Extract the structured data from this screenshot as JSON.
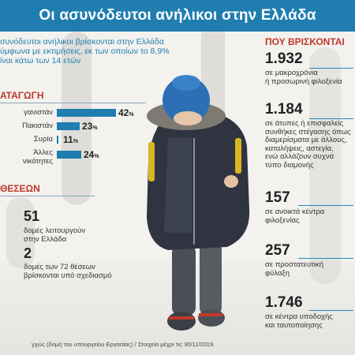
{
  "title": "Οι ασυνόδευτοι ανήλικοι στην Ελλάδα",
  "intro": [
    "συνόδευτοι ανήλικοι βρίσκονται στην Ελλάδα",
    "ύμφωνα με εκτιμήσεις, εκ των οποίων το 8,9%",
    "ίναι κάτω των 14 ετών"
  ],
  "origin": {
    "heading": "ΑΤΑΓΩΓΗ",
    "rows": [
      {
        "label": "γανιστάν",
        "value": 42,
        "pct": "%"
      },
      {
        "label": "Πακιστάν",
        "value": 23,
        "pct": "%"
      },
      {
        "label": "Συρία",
        "value": 11,
        "pct": "%"
      },
      {
        "label_l1": "Άλλες",
        "label_l2": "νικότητες",
        "value": 24,
        "pct": "%"
      }
    ]
  },
  "places": {
    "heading": "ΘΕΣΕΩΝ",
    "a_num": "51",
    "a_txt_1": "δομές λειτουργούν",
    "a_txt_2": "στην Ελλάδα",
    "b_num": "2",
    "b_txt_1": "δομές των 72 θέσεων",
    "b_txt_2": "βρίσκονται υπό σχεδιασμό"
  },
  "where": {
    "heading": "ΠΟΥ ΒΡΙΣΚΟΝΤΑΙ",
    "items": [
      {
        "num": "1.932",
        "lines": [
          "σε μακροχρόνια",
          "ή προσωρινή φιλοξενία"
        ]
      },
      {
        "num": "1.184",
        "lines": [
          "σε άτυπες ή επισφαλείς",
          "συνθήκες στέγασης όπως",
          "διαμερίσματα με άλλους,",
          "καταλήψεις, αστεγία,",
          "ενώ αλλάζουν συχνά",
          "τύπο διαμονής"
        ]
      },
      {
        "num": "157",
        "lines": [
          "σε ανοικτά κέντρα",
          "φιλοξενίας"
        ]
      },
      {
        "num": "257",
        "lines": [
          "σε προστατευτική",
          "φύλαξη"
        ]
      },
      {
        "num": "1.746",
        "lines": [
          "σε κέντρα υποδοχής",
          "και ταυτοποίησης"
        ]
      }
    ]
  },
  "footer": "γχώς (δομή του υπουργείου Εργασίας) / Στοιχεία μέχρι τις 30/11/2019.",
  "colors": {
    "accent": "#1f7db0",
    "heading_red": "#c0392b"
  }
}
